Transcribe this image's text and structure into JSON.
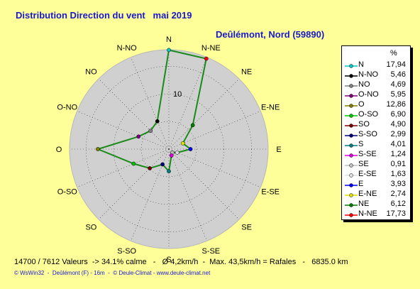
{
  "title": "Distribution Direction du vent   mai 2019",
  "location": "Deûlémont, Nord (59890)",
  "footer": "14700 / 7612 Valeurs  -> 34.1% calme   -   Ø 4,2km/h  -  Max. 43,5km/h = Rafales   -   6835.0 km",
  "credits": "© WsWin32  -  Deûlémont (F) - 16m  -  © Deule-Climat - www.deule-climat.net",
  "chart_data": {
    "type": "radar",
    "title": "Distribution Direction du vent   mai 2019",
    "unit": "%",
    "directions": [
      "N",
      "N-NE",
      "NE",
      "E-NE",
      "E",
      "E-SE",
      "SE",
      "S-SE",
      "S",
      "S-SO",
      "SO",
      "O-SO",
      "O",
      "O-NO",
      "NO",
      "N-NO"
    ],
    "values": [
      17.94,
      17.73,
      6.12,
      2.74,
      3.93,
      1.63,
      0.91,
      1.24,
      4.01,
      2.99,
      4.9,
      6.9,
      12.86,
      5.95,
      4.69,
      5.46
    ],
    "rlim": [
      0,
      18
    ],
    "ring_label": "10",
    "line_color": "#1a8a1a",
    "grid": true
  },
  "legend": {
    "header": "%",
    "items": [
      {
        "label": "N",
        "value": "17,94",
        "color": "#00c8c8"
      },
      {
        "label": "N-NO",
        "value": "5,46",
        "color": "#000000"
      },
      {
        "label": "NO",
        "value": "4,69",
        "color": "#808080"
      },
      {
        "label": "O-NO",
        "value": "5,95",
        "color": "#800080"
      },
      {
        "label": "O",
        "value": "12,86",
        "color": "#808000"
      },
      {
        "label": "O-SO",
        "value": "6,90",
        "color": "#00c800"
      },
      {
        "label": "SO",
        "value": "4,90",
        "color": "#800000"
      },
      {
        "label": "S-SO",
        "value": "2,99",
        "color": "#000080"
      },
      {
        "label": "S",
        "value": "4,01",
        "color": "#008080"
      },
      {
        "label": "S-SE",
        "value": "1,24",
        "color": "#e000e0"
      },
      {
        "label": "SE",
        "value": "0,91",
        "color": "#c0c0c0"
      },
      {
        "label": "E-SE",
        "value": "1,63",
        "color": "#e0e0e0"
      },
      {
        "label": "E",
        "value": "3,93",
        "color": "#0000ff"
      },
      {
        "label": "E-NE",
        "value": "2,74",
        "color": "#e0e000"
      },
      {
        "label": "NE",
        "value": "6,12",
        "color": "#008000"
      },
      {
        "label": "N-NE",
        "value": "17,73",
        "color": "#ff0000"
      }
    ]
  }
}
